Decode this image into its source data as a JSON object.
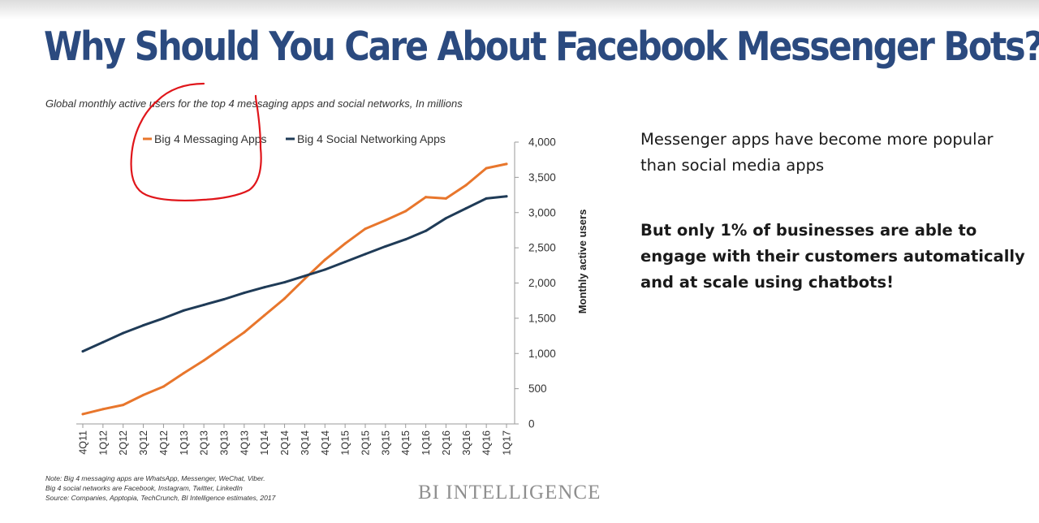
{
  "slide": {
    "title": "Why Should You Care About Facebook Messenger Bots?",
    "paragraph": "Messenger apps have become more popular than social media apps",
    "emphasis": "But only 1% of businesses are able to engage with their customers automatically and at scale using chatbots!",
    "notes": [
      "Note: Big 4 messaging apps are WhatsApp, Messenger, WeChat, Viber.",
      "Big 4 social networks are Facebook, Instagram, Twitter, LinkedIn",
      "Source: Companies,  Apptopia, TechCrunch,  BI Intelligence estimates, 2017"
    ],
    "brand": "BI INTELLIGENCE",
    "colors": {
      "title": "#2b4a7f",
      "messaging": "#e8762c",
      "social": "#1f3b57",
      "annotation": "#e0161b"
    }
  },
  "chart_data": {
    "type": "line",
    "title": "Global monthly active users for the top 4 messaging apps and social networks, In millions",
    "ylabel": "Monthly active users",
    "xlabel": "",
    "ylim": [
      0,
      4000
    ],
    "y_ticks": [
      "0",
      "500",
      "1,000",
      "1,500",
      "2,000",
      "2,500",
      "3,000",
      "3,500",
      "4,000"
    ],
    "y_tick_values": [
      0,
      500,
      1000,
      1500,
      2000,
      2500,
      3000,
      3500,
      4000
    ],
    "y_axis_side": "right",
    "grid": false,
    "legend_position": "top",
    "categories": [
      "4Q11",
      "1Q12",
      "2Q12",
      "3Q12",
      "4Q12",
      "1Q13",
      "2Q13",
      "3Q13",
      "4Q13",
      "1Q14",
      "2Q14",
      "3Q14",
      "4Q14",
      "1Q15",
      "2Q15",
      "3Q15",
      "4Q15",
      "1Q16",
      "2Q16",
      "3Q16",
      "4Q16",
      "1Q17"
    ],
    "series": [
      {
        "name": "Big 4 Messaging Apps",
        "color": "#e8762c",
        "values": [
          140,
          210,
          270,
          410,
          530,
          720,
          900,
          1100,
          1300,
          1540,
          1780,
          2060,
          2330,
          2560,
          2770,
          2890,
          3020,
          3220,
          3200,
          3390,
          3630,
          3690
        ]
      },
      {
        "name": "Big 4 Social Networking Apps",
        "color": "#1f3b57",
        "values": [
          1030,
          1160,
          1290,
          1400,
          1500,
          1610,
          1690,
          1770,
          1860,
          1940,
          2010,
          2100,
          2190,
          2300,
          2410,
          2520,
          2620,
          2740,
          2920,
          3060,
          3200,
          3230
        ]
      }
    ]
  }
}
